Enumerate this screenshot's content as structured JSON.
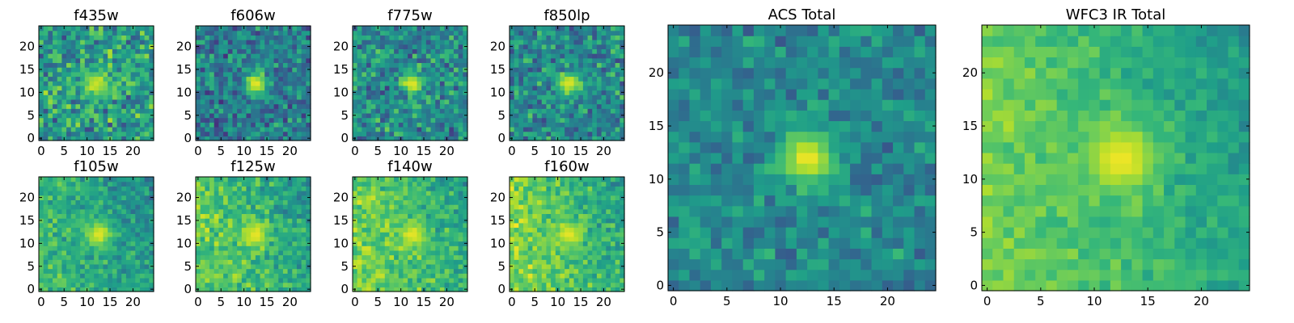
{
  "chart_data": [
    {
      "type": "heatmap",
      "title": "f435w",
      "colormap": "viridis",
      "xlim": [
        -0.5,
        24.5
      ],
      "ylim": [
        -0.5,
        24.5
      ],
      "x_ticks": [
        0,
        5,
        10,
        15,
        20
      ],
      "y_ticks": [
        0,
        5,
        10,
        15,
        20
      ],
      "grid_size": 25,
      "peak": [
        12,
        12
      ],
      "sigma": 2.0,
      "peak_level": 0.92,
      "background": 0.55,
      "noise": 0.35,
      "gradient": 0.0,
      "seed": 11
    },
    {
      "type": "heatmap",
      "title": "f606w",
      "colormap": "viridis",
      "xlim": [
        -0.5,
        24.5
      ],
      "ylim": [
        -0.5,
        24.5
      ],
      "x_ticks": [
        0,
        5,
        10,
        15,
        20
      ],
      "y_ticks": [
        0,
        5,
        10,
        15,
        20
      ],
      "grid_size": 25,
      "peak": [
        12.5,
        12
      ],
      "sigma": 1.6,
      "peak_level": 0.98,
      "background": 0.42,
      "noise": 0.3,
      "gradient": 0.0,
      "seed": 23
    },
    {
      "type": "heatmap",
      "title": "f775w",
      "colormap": "viridis",
      "xlim": [
        -0.5,
        24.5
      ],
      "ylim": [
        -0.5,
        24.5
      ],
      "x_ticks": [
        0,
        5,
        10,
        15,
        20
      ],
      "y_ticks": [
        0,
        5,
        10,
        15,
        20
      ],
      "grid_size": 25,
      "peak": [
        12.5,
        12
      ],
      "sigma": 1.7,
      "peak_level": 0.96,
      "background": 0.48,
      "noise": 0.32,
      "gradient": 0.0,
      "seed": 37
    },
    {
      "type": "heatmap",
      "title": "f850lp",
      "colormap": "viridis",
      "xlim": [
        -0.5,
        24.5
      ],
      "ylim": [
        -0.5,
        24.5
      ],
      "x_ticks": [
        0,
        5,
        10,
        15,
        20
      ],
      "y_ticks": [
        0,
        5,
        10,
        15,
        20
      ],
      "grid_size": 25,
      "peak": [
        12.5,
        12
      ],
      "sigma": 1.7,
      "peak_level": 0.96,
      "background": 0.47,
      "noise": 0.3,
      "gradient": 0.0,
      "seed": 41
    },
    {
      "type": "heatmap",
      "title": "ACS Total",
      "colormap": "viridis",
      "xlim": [
        -0.5,
        24.5
      ],
      "ylim": [
        -0.5,
        24.5
      ],
      "x_ticks": [
        0,
        5,
        10,
        15,
        20
      ],
      "y_ticks": [
        0,
        5,
        10,
        15,
        20
      ],
      "grid_size": 25,
      "peak": [
        12.5,
        12
      ],
      "sigma": 1.8,
      "peak_level": 0.98,
      "background": 0.47,
      "noise": 0.22,
      "gradient": 0.0,
      "seed": 53
    },
    {
      "type": "heatmap",
      "title": "f105w",
      "colormap": "viridis",
      "xlim": [
        -0.5,
        24.5
      ],
      "ylim": [
        -0.5,
        24.5
      ],
      "x_ticks": [
        0,
        5,
        10,
        15,
        20
      ],
      "y_ticks": [
        0,
        5,
        10,
        15,
        20
      ],
      "grid_size": 25,
      "peak": [
        12.5,
        12
      ],
      "sigma": 2.0,
      "peak_level": 0.96,
      "background": 0.55,
      "noise": 0.2,
      "gradient": 0.25,
      "seed": 61
    },
    {
      "type": "heatmap",
      "title": "f125w",
      "colormap": "viridis",
      "xlim": [
        -0.5,
        24.5
      ],
      "ylim": [
        -0.5,
        24.5
      ],
      "x_ticks": [
        0,
        5,
        10,
        15,
        20
      ],
      "y_ticks": [
        0,
        5,
        10,
        15,
        20
      ],
      "grid_size": 25,
      "peak": [
        12.5,
        12
      ],
      "sigma": 2.0,
      "peak_level": 0.97,
      "background": 0.62,
      "noise": 0.2,
      "gradient": 0.3,
      "seed": 67
    },
    {
      "type": "heatmap",
      "title": "f140w",
      "colormap": "viridis",
      "xlim": [
        -0.5,
        24.5
      ],
      "ylim": [
        -0.5,
        24.5
      ],
      "x_ticks": [
        0,
        5,
        10,
        15,
        20
      ],
      "y_ticks": [
        0,
        5,
        10,
        15,
        20
      ],
      "grid_size": 25,
      "peak": [
        12.5,
        12
      ],
      "sigma": 1.8,
      "peak_level": 0.97,
      "background": 0.65,
      "noise": 0.2,
      "gradient": 0.3,
      "seed": 71
    },
    {
      "type": "heatmap",
      "title": "f160w",
      "colormap": "viridis",
      "xlim": [
        -0.5,
        24.5
      ],
      "ylim": [
        -0.5,
        24.5
      ],
      "x_ticks": [
        0,
        5,
        10,
        15,
        20
      ],
      "y_ticks": [
        0,
        5,
        10,
        15,
        20
      ],
      "grid_size": 25,
      "peak": [
        12.5,
        12
      ],
      "sigma": 1.8,
      "peak_level": 0.97,
      "background": 0.65,
      "noise": 0.2,
      "gradient": 0.35,
      "seed": 79
    },
    {
      "type": "heatmap",
      "title": "WFC3 IR Total",
      "colormap": "viridis",
      "xlim": [
        -0.5,
        24.5
      ],
      "ylim": [
        -0.5,
        24.5
      ],
      "x_ticks": [
        0,
        5,
        10,
        15,
        20
      ],
      "y_ticks": [
        0,
        5,
        10,
        15,
        20
      ],
      "grid_size": 25,
      "peak": [
        12.5,
        12
      ],
      "sigma": 2.2,
      "peak_level": 0.98,
      "background": 0.62,
      "noise": 0.12,
      "gradient": 0.35,
      "seed": 83
    }
  ]
}
